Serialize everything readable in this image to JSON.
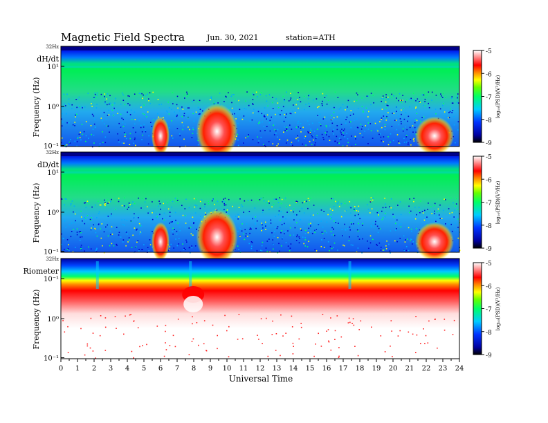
{
  "header": {
    "title": "Magnetic  Field  Spectra",
    "date": "Jun. 30, 2021",
    "station": "station=ATH"
  },
  "chart_data": [
    {
      "type": "heatmap",
      "panel_label": "dH/dt",
      "ylabel": "Frequency  (Hz)",
      "top_label": "32Hz",
      "yticks": [
        "10¹",
        "10⁰",
        "10⁻¹"
      ],
      "xlim": [
        0,
        24
      ],
      "colorbar": {
        "label": "log₁₀(PSD)(V²/Hz)",
        "ticks": [
          "-5",
          "-6",
          "-7",
          "-8",
          "-9"
        ],
        "range": [
          -9,
          -5
        ]
      },
      "features": [
        {
          "description": "broadband green background",
          "log_psd": -7
        },
        {
          "description": "blue band near 32Hz",
          "log_psd": -8.5
        },
        {
          "description": "red bursts",
          "times": [
            6.0,
            9.4,
            22.5
          ],
          "log_psd": -5.5
        }
      ]
    },
    {
      "type": "heatmap",
      "panel_label": "dD/dt",
      "ylabel": "Frequency  (Hz)",
      "top_label": "32Hz",
      "yticks": [
        "10¹",
        "10⁰",
        "10⁻¹"
      ],
      "xlim": [
        0,
        24
      ],
      "colorbar": {
        "label": "log₁₀(PSD)(V²/Hz)",
        "ticks": [
          "-5",
          "-6",
          "-7",
          "-8",
          "-9"
        ],
        "range": [
          -9,
          -5
        ]
      },
      "features": [
        {
          "description": "broadband green background",
          "log_psd": -7
        },
        {
          "description": "blue band near 32Hz",
          "log_psd": -8.5
        },
        {
          "description": "red bursts",
          "times": [
            6.0,
            9.4,
            22.5
          ],
          "log_psd": -5.5
        }
      ]
    },
    {
      "type": "heatmap",
      "panel_label": "Riometer",
      "ylabel": "Frequency  (Hz)",
      "top_label": "32Hz",
      "yticks": [
        "10⁻¹",
        "10⁰",
        "10⁻¹"
      ],
      "xlim": [
        0,
        24
      ],
      "colorbar": {
        "label": "log₁₀(PSD)(V²/Hz)",
        "ticks": [
          "-5",
          "-6",
          "-7",
          "-8",
          "-9"
        ],
        "range": [
          -9,
          -5
        ]
      },
      "features": [
        {
          "description": "stacked bands blue to red near top",
          "log_psd": -6
        },
        {
          "description": "white (saturated) lower area",
          "log_psd": -5
        },
        {
          "description": "disturbance",
          "times": [
            2.2,
            7.8,
            17.4
          ]
        }
      ]
    }
  ],
  "xaxis": {
    "label": "Universal Time",
    "ticks": [
      "0",
      "1",
      "2",
      "3",
      "4",
      "5",
      "6",
      "7",
      "8",
      "9",
      "10",
      "11",
      "12",
      "13",
      "14",
      "15",
      "16",
      "17",
      "18",
      "19",
      "20",
      "21",
      "22",
      "23",
      "24"
    ]
  }
}
